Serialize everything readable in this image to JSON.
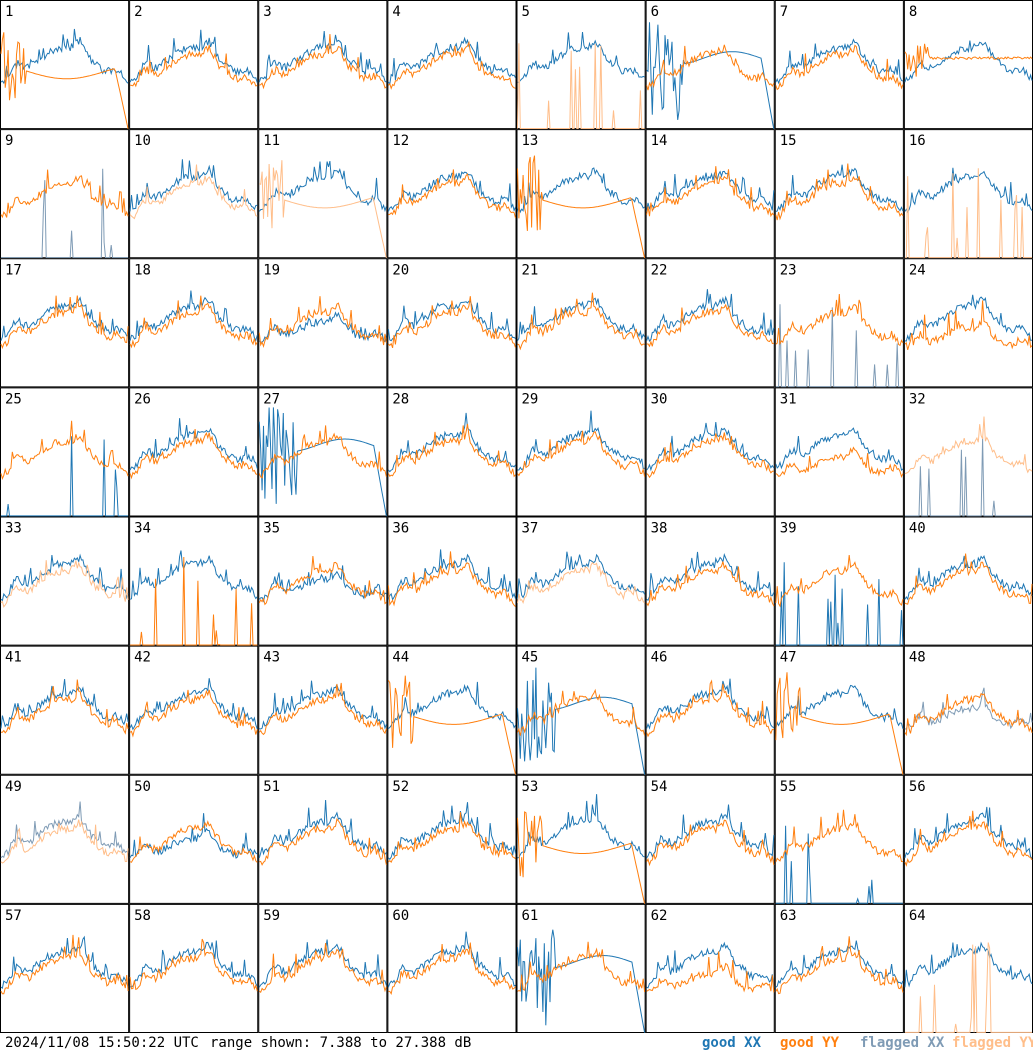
{
  "footer": {
    "timestamp": "2024/11/08 15:50:22 UTC",
    "range": "range shown: 7.388 to 27.388 dB"
  },
  "legend": [
    {
      "label": "good XX",
      "color": "#1f77b4"
    },
    {
      "label": "good YY",
      "color": "#ff7f0e"
    },
    {
      "label": "flagged XX",
      "color": "#7f9bb5"
    },
    {
      "label": "flagged YY",
      "color": "#ffbe8a"
    }
  ],
  "chart_data": {
    "type": "line",
    "grid_rows": 8,
    "grid_cols": 8,
    "ylim_db": [
      7.388,
      27.388
    ],
    "panels": [
      {
        "label": "1",
        "xx": "good",
        "yy": "good",
        "xx_shape": "normal",
        "yy_shape": "falling"
      },
      {
        "label": "2",
        "xx": "good",
        "yy": "good",
        "xx_shape": "normal",
        "yy_shape": "normal"
      },
      {
        "label": "3",
        "xx": "good",
        "yy": "good",
        "xx_shape": "normal",
        "yy_shape": "normal"
      },
      {
        "label": "4",
        "xx": "good",
        "yy": "good",
        "xx_shape": "normal",
        "yy_shape": "normal"
      },
      {
        "label": "5",
        "xx": "good",
        "yy": "flagged",
        "xx_shape": "normal",
        "yy_shape": "spikes"
      },
      {
        "label": "6",
        "xx": "good",
        "yy": "good",
        "xx_shape": "noisy_drop",
        "yy_shape": "normal"
      },
      {
        "label": "7",
        "xx": "good",
        "yy": "good",
        "xx_shape": "normal",
        "yy_shape": "normal"
      },
      {
        "label": "8",
        "xx": "good",
        "yy": "good",
        "xx_shape": "normal",
        "yy_shape": "flat"
      },
      {
        "label": "9",
        "xx": "flagged",
        "yy": "good",
        "xx_shape": "spikes",
        "yy_shape": "normal"
      },
      {
        "label": "10",
        "xx": "good",
        "yy": "flagged",
        "xx_shape": "normal",
        "yy_shape": "normal"
      },
      {
        "label": "11",
        "xx": "good",
        "yy": "flagged",
        "xx_shape": "normal",
        "yy_shape": "falling"
      },
      {
        "label": "12",
        "xx": "good",
        "yy": "good",
        "xx_shape": "normal",
        "yy_shape": "normal"
      },
      {
        "label": "13",
        "xx": "good",
        "yy": "good",
        "xx_shape": "normal",
        "yy_shape": "falling"
      },
      {
        "label": "14",
        "xx": "good",
        "yy": "good",
        "xx_shape": "normal",
        "yy_shape": "normal"
      },
      {
        "label": "15",
        "xx": "good",
        "yy": "good",
        "xx_shape": "normal",
        "yy_shape": "normal"
      },
      {
        "label": "16",
        "xx": "good",
        "yy": "flagged",
        "xx_shape": "normal",
        "yy_shape": "spikes"
      },
      {
        "label": "17",
        "xx": "good",
        "yy": "good",
        "xx_shape": "normal",
        "yy_shape": "normal"
      },
      {
        "label": "18",
        "xx": "good",
        "yy": "good",
        "xx_shape": "normal",
        "yy_shape": "normal"
      },
      {
        "label": "19",
        "xx": "good",
        "yy": "good",
        "xx_shape": "low",
        "yy_shape": "normal"
      },
      {
        "label": "20",
        "xx": "good",
        "yy": "good",
        "xx_shape": "normal",
        "yy_shape": "normal"
      },
      {
        "label": "21",
        "xx": "good",
        "yy": "good",
        "xx_shape": "normal",
        "yy_shape": "normal"
      },
      {
        "label": "22",
        "xx": "good",
        "yy": "good",
        "xx_shape": "normal",
        "yy_shape": "normal"
      },
      {
        "label": "23",
        "xx": "flagged",
        "yy": "good",
        "xx_shape": "spikes",
        "yy_shape": "normal"
      },
      {
        "label": "24",
        "xx": "good",
        "yy": "good",
        "xx_shape": "normal",
        "yy_shape": "low"
      },
      {
        "label": "25",
        "xx": "good",
        "yy": "good",
        "xx_shape": "spikes",
        "yy_shape": "normal"
      },
      {
        "label": "26",
        "xx": "good",
        "yy": "good",
        "xx_shape": "normal",
        "yy_shape": "normal"
      },
      {
        "label": "27",
        "xx": "good",
        "yy": "good",
        "xx_shape": "noisy_drop",
        "yy_shape": "normal"
      },
      {
        "label": "28",
        "xx": "good",
        "yy": "good",
        "xx_shape": "normal",
        "yy_shape": "normal"
      },
      {
        "label": "29",
        "xx": "good",
        "yy": "good",
        "xx_shape": "normal",
        "yy_shape": "normal"
      },
      {
        "label": "30",
        "xx": "good",
        "yy": "good",
        "xx_shape": "normal",
        "yy_shape": "normal"
      },
      {
        "label": "31",
        "xx": "good",
        "yy": "good",
        "xx_shape": "normal",
        "yy_shape": "low"
      },
      {
        "label": "32",
        "xx": "flagged",
        "yy": "flagged",
        "xx_shape": "spikes",
        "yy_shape": "normal"
      },
      {
        "label": "33",
        "xx": "good",
        "yy": "flagged",
        "xx_shape": "normal",
        "yy_shape": "normal"
      },
      {
        "label": "34",
        "xx": "good",
        "yy": "good",
        "xx_shape": "normal",
        "yy_shape": "spikes"
      },
      {
        "label": "35",
        "xx": "good",
        "yy": "good",
        "xx_shape": "low",
        "yy_shape": "normal"
      },
      {
        "label": "36",
        "xx": "good",
        "yy": "good",
        "xx_shape": "normal",
        "yy_shape": "normal"
      },
      {
        "label": "37",
        "xx": "good",
        "yy": "flagged",
        "xx_shape": "normal",
        "yy_shape": "normal"
      },
      {
        "label": "38",
        "xx": "good",
        "yy": "good",
        "xx_shape": "normal",
        "yy_shape": "normal"
      },
      {
        "label": "39",
        "xx": "good",
        "yy": "good",
        "xx_shape": "spikes",
        "yy_shape": "normal"
      },
      {
        "label": "40",
        "xx": "good",
        "yy": "good",
        "xx_shape": "normal",
        "yy_shape": "normal"
      },
      {
        "label": "41",
        "xx": "good",
        "yy": "good",
        "xx_shape": "normal",
        "yy_shape": "normal"
      },
      {
        "label": "42",
        "xx": "good",
        "yy": "good",
        "xx_shape": "normal",
        "yy_shape": "normal"
      },
      {
        "label": "43",
        "xx": "good",
        "yy": "good",
        "xx_shape": "normal",
        "yy_shape": "normal"
      },
      {
        "label": "44",
        "xx": "good",
        "yy": "good",
        "xx_shape": "normal",
        "yy_shape": "falling"
      },
      {
        "label": "45",
        "xx": "good",
        "yy": "good",
        "xx_shape": "noisy_drop",
        "yy_shape": "normal"
      },
      {
        "label": "46",
        "xx": "good",
        "yy": "good",
        "xx_shape": "normal",
        "yy_shape": "normal"
      },
      {
        "label": "47",
        "xx": "good",
        "yy": "good",
        "xx_shape": "normal",
        "yy_shape": "falling"
      },
      {
        "label": "48",
        "xx": "flagged",
        "yy": "good",
        "xx_shape": "low",
        "yy_shape": "normal"
      },
      {
        "label": "49",
        "xx": "flagged",
        "yy": "flagged",
        "xx_shape": "normal",
        "yy_shape": "normal"
      },
      {
        "label": "50",
        "xx": "good",
        "yy": "good",
        "xx_shape": "low",
        "yy_shape": "normal"
      },
      {
        "label": "51",
        "xx": "good",
        "yy": "good",
        "xx_shape": "normal",
        "yy_shape": "normal"
      },
      {
        "label": "52",
        "xx": "good",
        "yy": "good",
        "xx_shape": "normal",
        "yy_shape": "normal"
      },
      {
        "label": "53",
        "xx": "good",
        "yy": "good",
        "xx_shape": "normal",
        "yy_shape": "falling"
      },
      {
        "label": "54",
        "xx": "good",
        "yy": "good",
        "xx_shape": "normal",
        "yy_shape": "normal"
      },
      {
        "label": "55",
        "xx": "good",
        "yy": "good",
        "xx_shape": "spikes",
        "yy_shape": "normal"
      },
      {
        "label": "56",
        "xx": "good",
        "yy": "good",
        "xx_shape": "normal",
        "yy_shape": "normal"
      },
      {
        "label": "57",
        "xx": "good",
        "yy": "good",
        "xx_shape": "normal",
        "yy_shape": "normal"
      },
      {
        "label": "58",
        "xx": "good",
        "yy": "good",
        "xx_shape": "normal",
        "yy_shape": "normal"
      },
      {
        "label": "59",
        "xx": "good",
        "yy": "good",
        "xx_shape": "normal",
        "yy_shape": "normal"
      },
      {
        "label": "60",
        "xx": "good",
        "yy": "good",
        "xx_shape": "normal",
        "yy_shape": "normal"
      },
      {
        "label": "61",
        "xx": "good",
        "yy": "good",
        "xx_shape": "noisy_drop",
        "yy_shape": "normal"
      },
      {
        "label": "62",
        "xx": "good",
        "yy": "good",
        "xx_shape": "normal",
        "yy_shape": "low"
      },
      {
        "label": "63",
        "xx": "good",
        "yy": "good",
        "xx_shape": "normal",
        "yy_shape": "normal"
      },
      {
        "label": "64",
        "xx": "good",
        "yy": "flagged",
        "xx_shape": "normal",
        "yy_shape": "spikes"
      }
    ]
  }
}
